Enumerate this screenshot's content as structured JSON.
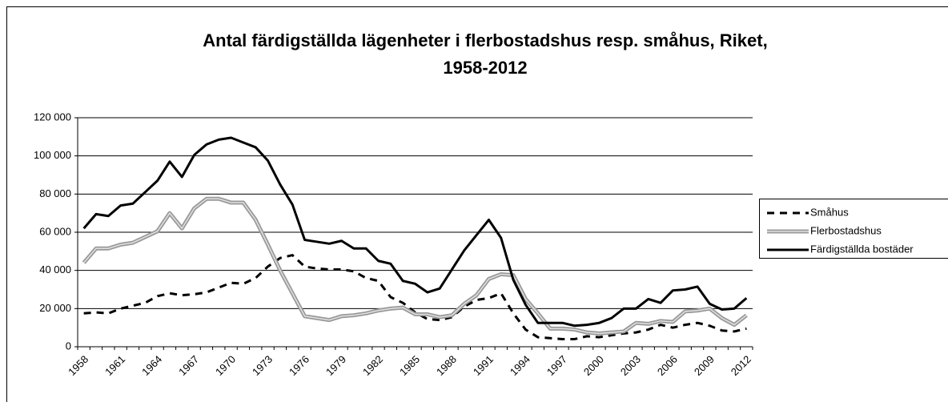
{
  "chart_data": {
    "type": "line",
    "title": [
      "Antal färdigställda lägenheter i flerbostadshus resp. småhus, Riket,",
      "1958-2012"
    ],
    "categories": [
      "1958",
      null,
      null,
      "1961",
      null,
      null,
      "1964",
      null,
      null,
      "1967",
      null,
      null,
      "1970",
      null,
      null,
      "1973",
      null,
      null,
      "1976",
      null,
      null,
      "1979",
      null,
      null,
      "1982",
      null,
      null,
      "1985",
      null,
      null,
      "1988",
      null,
      null,
      "1991",
      null,
      null,
      "1994",
      null,
      null,
      "1997",
      null,
      null,
      "2000",
      null,
      null,
      "2003",
      null,
      null,
      "2006",
      null,
      null,
      "2009",
      null,
      null,
      "2012"
    ],
    "series": [
      {
        "name": "Småhus",
        "color": "#000000",
        "dashed": true,
        "values": [
          17500,
          18000,
          17500,
          20000,
          21500,
          23000,
          26500,
          28000,
          27000,
          27500,
          28500,
          31000,
          33500,
          33000,
          36000,
          42000,
          46500,
          48000,
          42000,
          41000,
          40500,
          40500,
          39500,
          36000,
          34500,
          26000,
          23000,
          18000,
          14500,
          14000,
          15500,
          21000,
          24500,
          25500,
          28000,
          17500,
          9000,
          5000,
          4500,
          4000,
          4000,
          5500,
          5000,
          6000,
          7000,
          7500,
          9000,
          11500,
          10000,
          11500,
          12500,
          11000,
          8500,
          8000,
          9500
        ]
      },
      {
        "name": "Flerbostadshus",
        "color": "#999999",
        "double": true,
        "values": [
          44000,
          51500,
          51500,
          53500,
          54500,
          57500,
          60500,
          70000,
          62000,
          72500,
          77500,
          77500,
          75500,
          75500,
          66500,
          53500,
          40000,
          28000,
          16000,
          15000,
          14000,
          16000,
          16500,
          17500,
          19000,
          20000,
          20500,
          17000,
          17000,
          15500,
          16500,
          22500,
          27000,
          35500,
          38000,
          37500,
          25000,
          17500,
          9500,
          9500,
          9000,
          7500,
          7000,
          7500,
          8000,
          12500,
          12000,
          13500,
          13000,
          18500,
          19000,
          20000,
          15000,
          11500,
          16500
        ]
      },
      {
        "name": "Färdigställda bostäder",
        "color": "#000000",
        "values": [
          62000,
          69500,
          68500,
          74000,
          75000,
          81000,
          87000,
          97000,
          89000,
          100500,
          106000,
          108500,
          109500,
          107000,
          104500,
          97500,
          85000,
          74500,
          56000,
          55000,
          54000,
          55500,
          51500,
          51500,
          45000,
          43500,
          34500,
          33000,
          28500,
          30500,
          40500,
          50500,
          58500,
          66500,
          57000,
          35000,
          22000,
          12500,
          12500,
          12500,
          11000,
          11500,
          12500,
          15000,
          20000,
          20000,
          25000,
          23000,
          29500,
          30000,
          31500,
          22500,
          19500,
          20000,
          25500
        ]
      }
    ],
    "ylim": [
      0,
      120000
    ],
    "yticks": [
      0,
      {
        "value": 20000,
        "label": "20 000"
      },
      {
        "value": 40000,
        "label": "40 000"
      },
      {
        "value": 60000,
        "label": "60 000"
      },
      {
        "value": 80000,
        "label": "80 000"
      },
      {
        "value": 100000,
        "label": "100 000"
      },
      {
        "value": 120000,
        "label": "120 000"
      }
    ],
    "grid": true,
    "legend": "right"
  }
}
